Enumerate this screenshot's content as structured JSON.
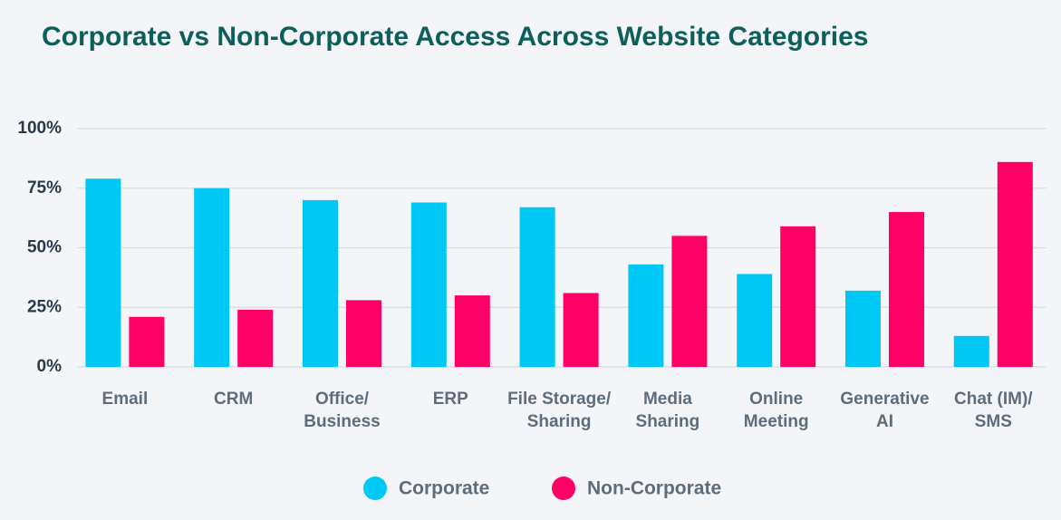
{
  "chart_data": {
    "type": "bar",
    "title": "Corporate vs Non-Corporate Access Across Website Categories",
    "categories": [
      "Email",
      "CRM",
      "Office/\nBusiness",
      "ERP",
      "File Storage/\nSharing",
      "Media\nSharing",
      "Online\nMeeting",
      "Generative\nAI",
      "Chat (IM)/\nSMS"
    ],
    "series": [
      {
        "name": "Corporate",
        "color": "#00c8f5",
        "values": [
          79,
          75,
          70,
          69,
          67,
          43,
          39,
          32,
          13
        ]
      },
      {
        "name": "Non-Corporate",
        "color": "#ff0066",
        "values": [
          21,
          24,
          28,
          30,
          31,
          55,
          59,
          65,
          86
        ]
      }
    ],
    "ylim": [
      0,
      100
    ],
    "yticks": [
      {
        "value": 0,
        "label": "0%"
      },
      {
        "value": 25,
        "label": "25%"
      },
      {
        "value": 50,
        "label": "50%"
      },
      {
        "value": 75,
        "label": "75%"
      },
      {
        "value": 100,
        "label": "100%"
      }
    ],
    "grid": true,
    "legend": "bottom"
  }
}
